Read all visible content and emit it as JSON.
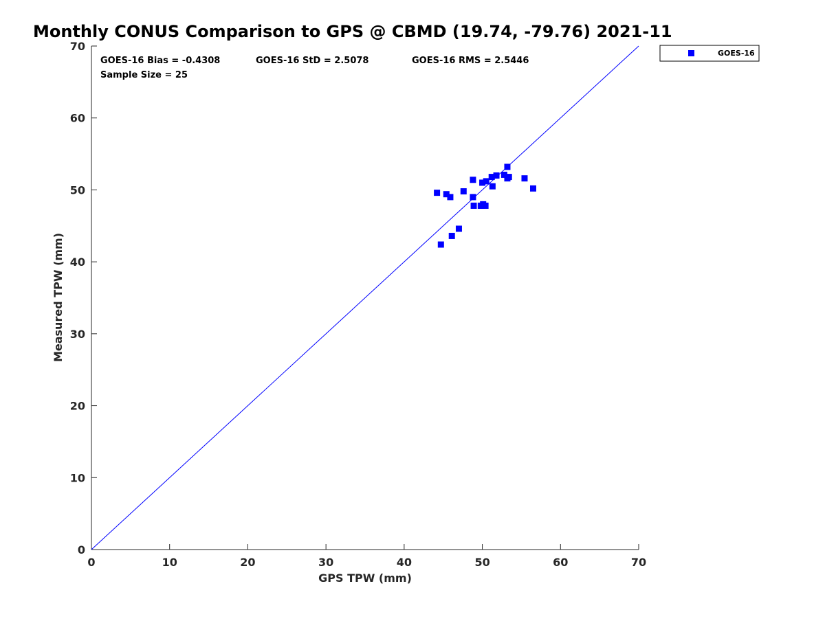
{
  "chart_data": {
    "type": "scatter",
    "title": "Monthly CONUS Comparison to GPS @ CBMD (19.74, -79.76) 2021-11",
    "xlabel": "GPS TPW (mm)",
    "ylabel": "Measured TPW (mm)",
    "xlim": [
      0,
      70
    ],
    "ylim": [
      0,
      70
    ],
    "xticks": [
      0,
      10,
      20,
      30,
      40,
      50,
      60,
      70
    ],
    "yticks": [
      0,
      10,
      20,
      30,
      40,
      50,
      60,
      70
    ],
    "grid": false,
    "legend_position": "outside-top-right",
    "reference_line": {
      "from": [
        0,
        0
      ],
      "to": [
        70,
        70
      ],
      "color": "#0000ff"
    },
    "series": [
      {
        "name": "GOES-16",
        "color": "#0000ff",
        "marker": "square",
        "x": [
          44.2,
          44.7,
          45.4,
          45.9,
          46.1,
          47.0,
          47.6,
          48.8,
          48.8,
          48.9,
          49.8,
          50.0,
          50.1,
          50.4,
          50.5,
          51.2,
          51.3,
          51.8,
          52.8,
          53.2,
          53.2,
          53.4,
          55.4,
          56.5,
          49.9
        ],
        "y": [
          49.6,
          42.4,
          49.4,
          49.0,
          43.6,
          44.6,
          49.8,
          51.4,
          49.0,
          47.8,
          47.8,
          51.0,
          48.0,
          47.8,
          51.2,
          51.8,
          50.5,
          52.0,
          52.1,
          53.2,
          51.6,
          51.8,
          51.6,
          50.2,
          47.8
        ]
      }
    ],
    "stats": {
      "bias": "GOES-16 Bias = -0.4308",
      "std": "GOES-16 StD = 2.5078",
      "rms": "GOES-16 RMS = 2.5446",
      "sample_size": "Sample Size = 25"
    }
  }
}
